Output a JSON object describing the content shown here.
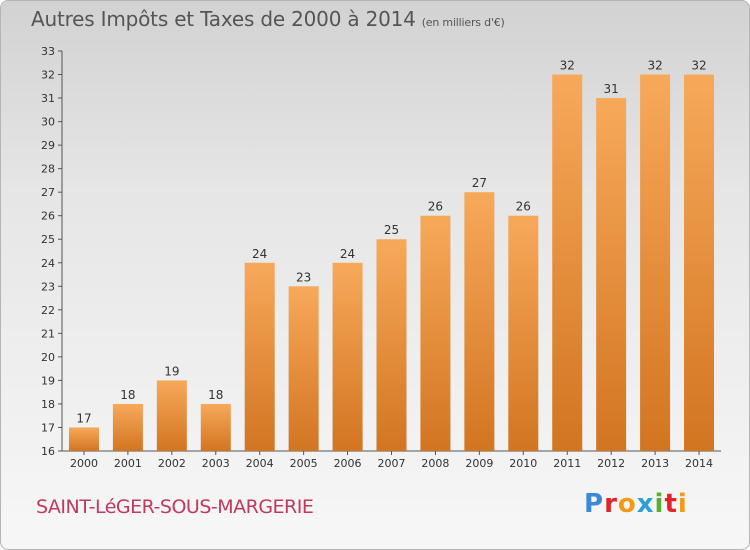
{
  "header": {
    "title": "Autres Impôts et Taxes de 2000 à 2014",
    "unit": "(en milliers d'€)"
  },
  "footer": {
    "town": "SAINT-LéGER-SOUS-MARGERIE",
    "logo": [
      "P",
      "r",
      "o",
      "x",
      "i",
      "t",
      "i"
    ]
  },
  "colors": {
    "bar_light": "#f7a95a",
    "bar_dark": "#d97a22",
    "axis": "#555555",
    "grid": "#c4c4c4"
  },
  "chart_data": {
    "type": "bar",
    "title": "Autres Impôts et Taxes de 2000 à 2014",
    "subtitle": "(en milliers d'€)",
    "categories": [
      "2000",
      "2001",
      "2002",
      "2003",
      "2004",
      "2005",
      "2006",
      "2007",
      "2008",
      "2009",
      "2010",
      "2011",
      "2012",
      "2013",
      "2014"
    ],
    "values": [
      17,
      18,
      19,
      18,
      24,
      23,
      24,
      25,
      26,
      27,
      26,
      32,
      31,
      32,
      32
    ],
    "ylim": [
      16,
      33
    ],
    "yticks": [
      16,
      17,
      18,
      19,
      20,
      21,
      22,
      23,
      24,
      25,
      26,
      27,
      28,
      29,
      30,
      31,
      32,
      33
    ],
    "xlabel": "",
    "ylabel": "",
    "grid": false
  }
}
